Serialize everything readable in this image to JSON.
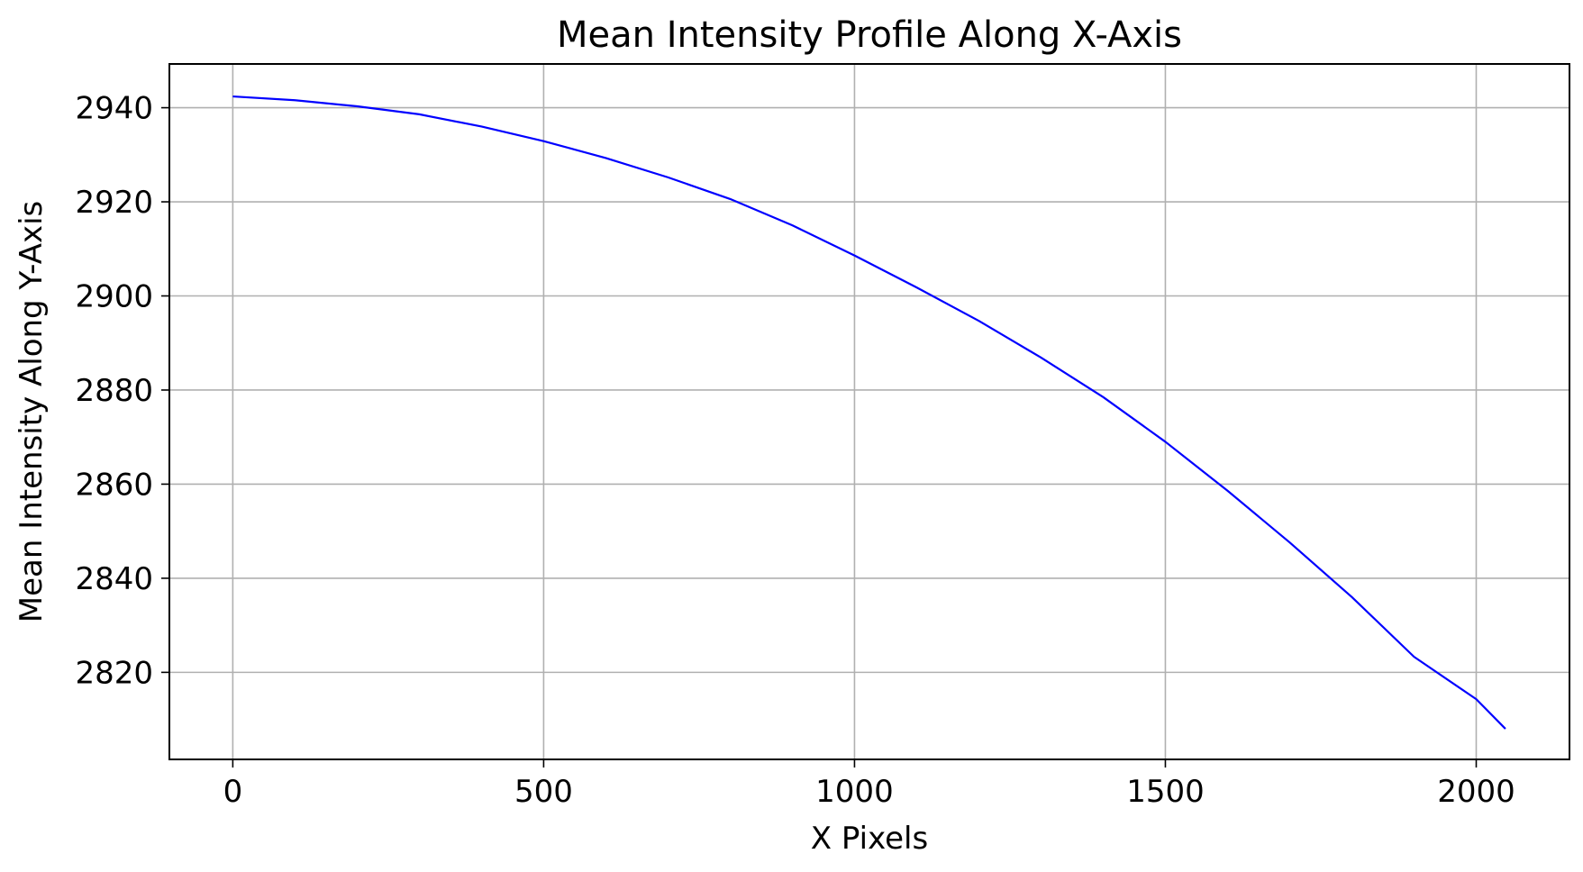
{
  "chart_data": {
    "type": "line",
    "title": "Mean Intensity Profile Along X-Axis",
    "xlabel": "X Pixels",
    "ylabel": "Mean Intensity Along Y-Axis",
    "xlim": [
      -102,
      2150
    ],
    "ylim": [
      2801.5,
      2949.3
    ],
    "x_ticks": [
      0,
      500,
      1000,
      1500,
      2000
    ],
    "x_tick_labels": [
      "0",
      "500",
      "1000",
      "1500",
      "2000"
    ],
    "y_ticks": [
      2820,
      2840,
      2860,
      2880,
      2900,
      2920,
      2940
    ],
    "y_tick_labels": [
      "2820",
      "2840",
      "2860",
      "2880",
      "2900",
      "2920",
      "2940"
    ],
    "grid": true,
    "series": [
      {
        "color": "#0000ff",
        "x": [
          0,
          100,
          200,
          300,
          400,
          500,
          600,
          700,
          800,
          900,
          1000,
          1100,
          1200,
          1300,
          1400,
          1500,
          1600,
          1700,
          1800,
          1900,
          2000,
          2047
        ],
        "y": [
          2942.4,
          2941.6,
          2940.3,
          2938.6,
          2936.0,
          2932.9,
          2929.3,
          2925.2,
          2920.6,
          2915.0,
          2908.6,
          2901.8,
          2894.7,
          2886.9,
          2878.5,
          2869.0,
          2858.6,
          2847.6,
          2836.0,
          2823.3,
          2814.3,
          2808.0
        ]
      }
    ]
  }
}
